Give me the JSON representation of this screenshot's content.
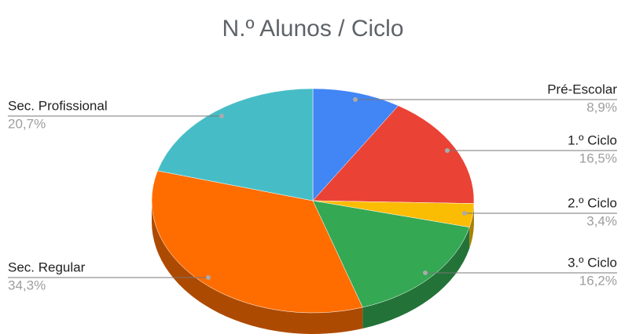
{
  "chart_data": {
    "type": "pie",
    "title": "N.º Alunos / Ciclo",
    "categories": [
      "Pré-Escolar",
      "1.º Ciclo",
      "2.º Ciclo",
      "3.º Ciclo",
      "Sec. Regular",
      "Sec. Profissional"
    ],
    "values": [
      8.9,
      16.5,
      3.4,
      16.2,
      34.3,
      20.7
    ],
    "value_labels": [
      "8,9%",
      "16,5%",
      "3,4%",
      "16,2%",
      "34,3%",
      "20,7%"
    ],
    "colors": [
      "#4285f4",
      "#ea4335",
      "#fbbc04",
      "#34a853",
      "#ff6d01",
      "#46bdc6"
    ]
  }
}
